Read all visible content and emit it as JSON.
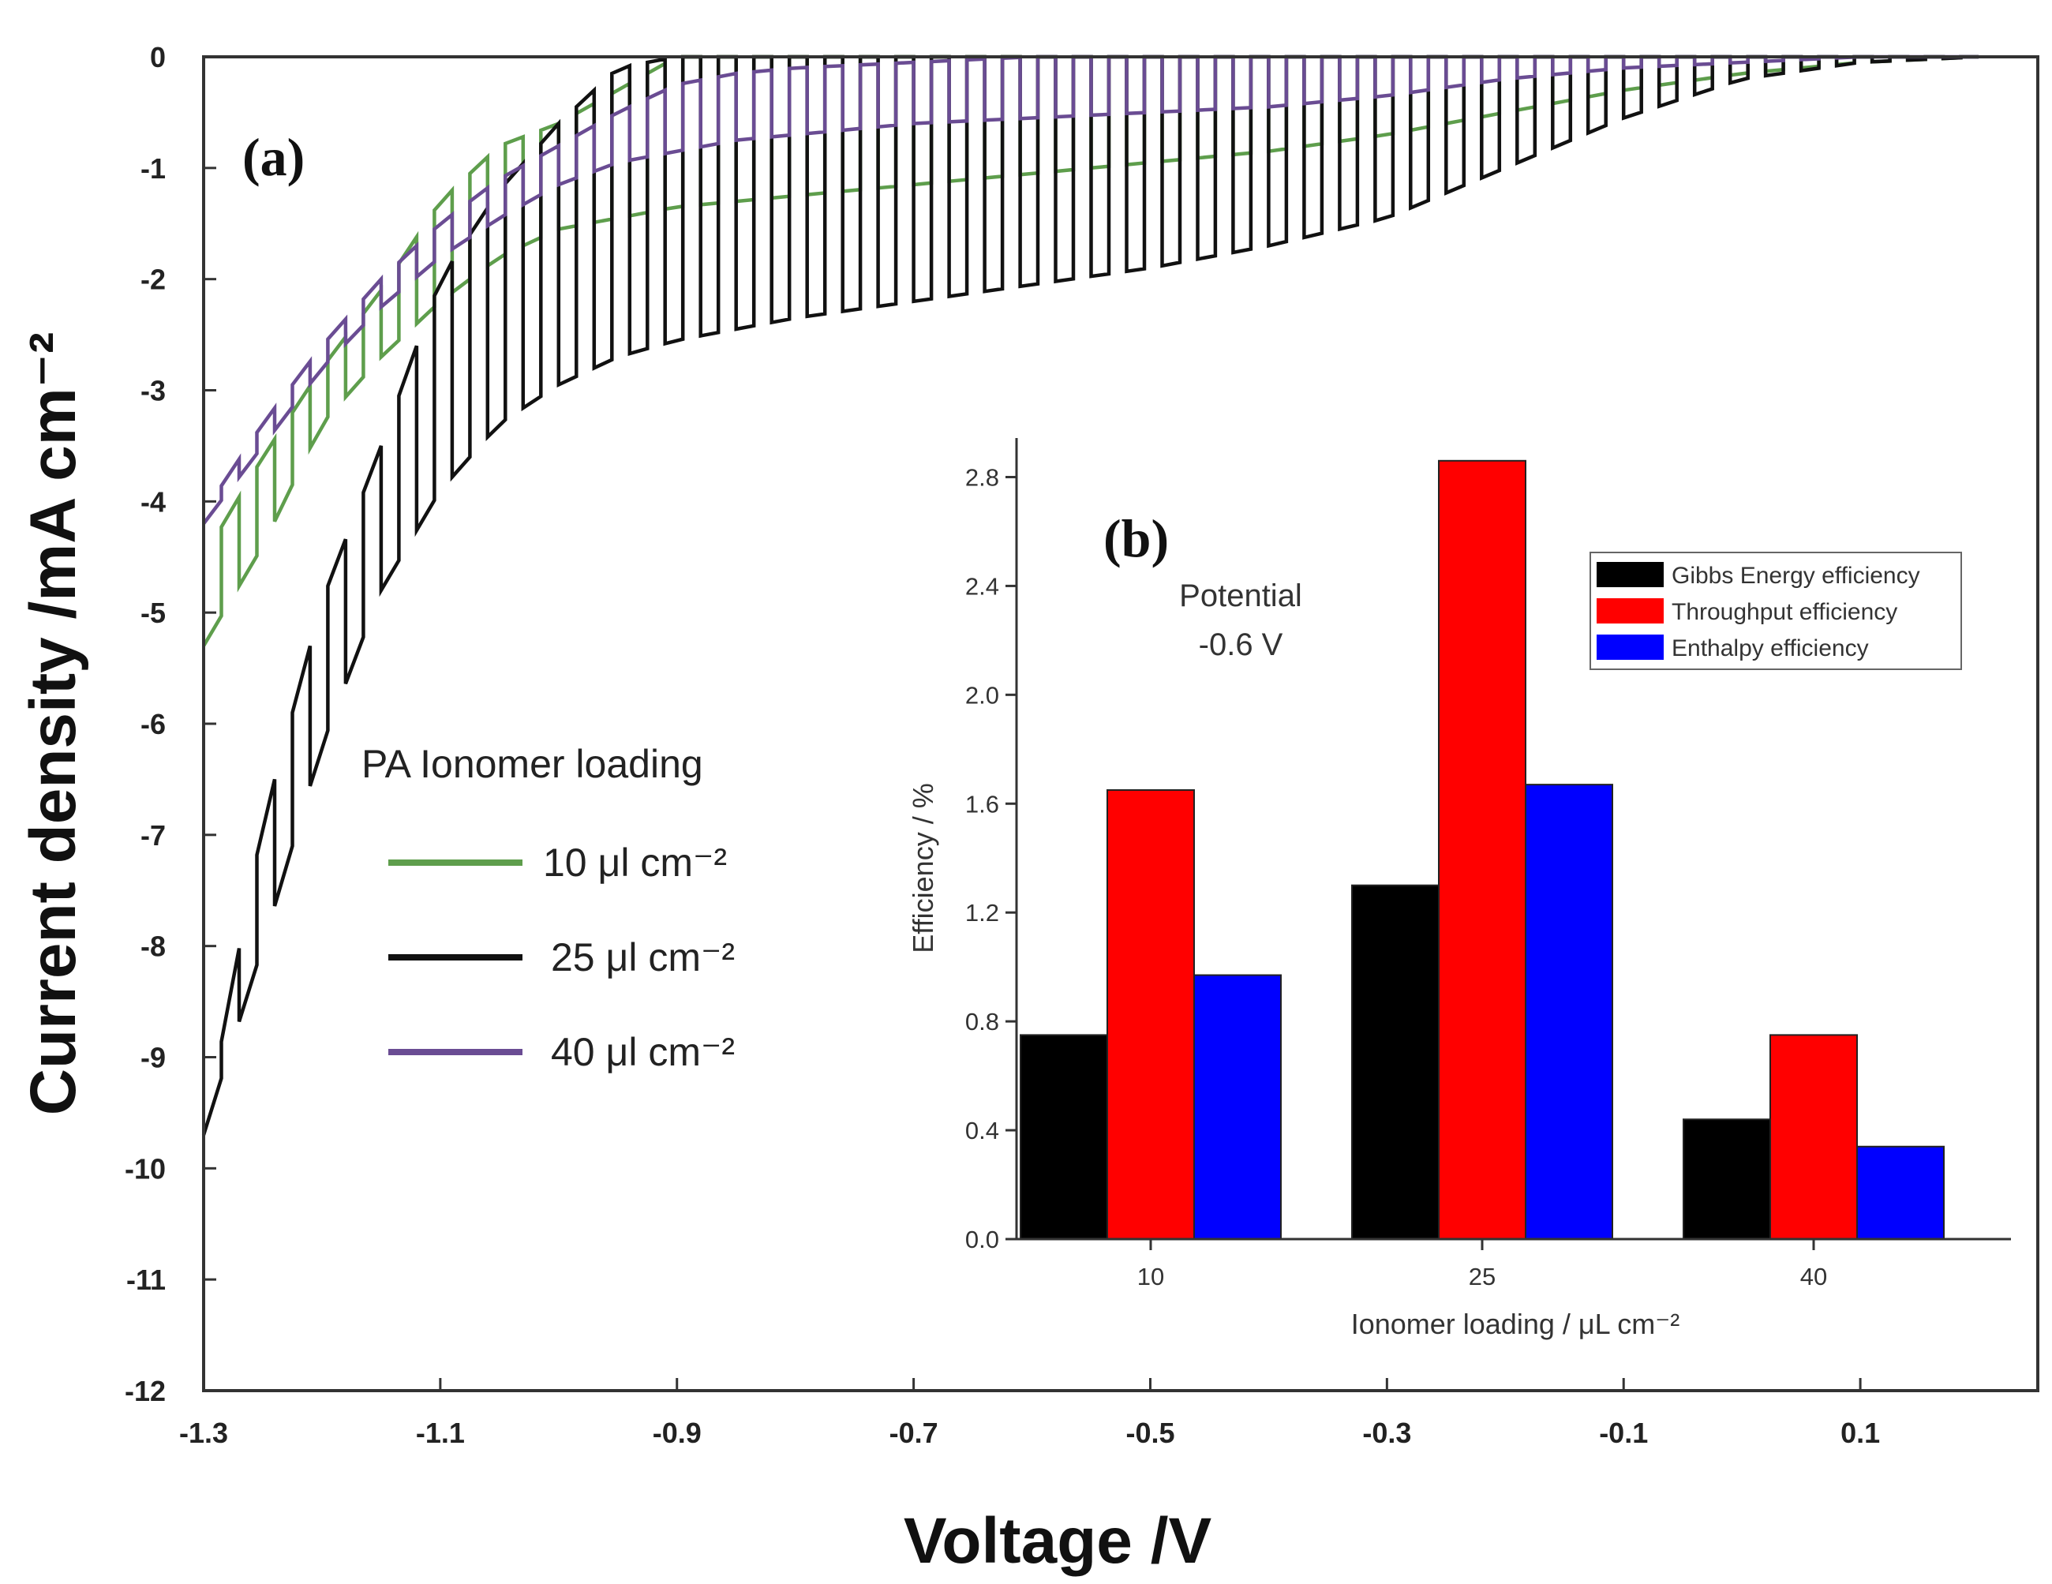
{
  "chart_data": [
    {
      "panel": "(a)",
      "type": "line",
      "title": "",
      "xlabel": "Voltage /V",
      "ylabel": "Current density /mA cm⁻²",
      "xlim": [
        -1.3,
        0.25
      ],
      "ylim": [
        -12,
        0
      ],
      "x_ticks": [
        -1.3,
        -1.1,
        -0.9,
        -0.7,
        -0.5,
        -0.3,
        -0.1,
        0.1
      ],
      "x_tick_labels": [
        "-1.3",
        "-1.1",
        "-0.9",
        "-0.7",
        "-0.5",
        "-0.3",
        "-0.1",
        "0.1"
      ],
      "y_ticks": [
        0,
        -1,
        -2,
        -3,
        -4,
        -5,
        -6,
        -7,
        -8,
        -9,
        -10,
        -11,
        -12
      ],
      "y_tick_labels": [
        "0",
        "-1",
        "-2",
        "-3",
        "-4",
        "-5",
        "-6",
        "-7",
        "-8",
        "-9",
        "-10",
        "-11",
        "-12"
      ],
      "legend_title": "PA Ionomer loading",
      "legend_position": "middle-left",
      "series": [
        {
          "name": "10 μl cm⁻²",
          "color": "#5e9e4c",
          "description": "chopped-light LSV: dark (upper) and illuminated (lower) current envelopes",
          "x": [
            -1.3,
            -1.25,
            -1.2,
            -1.15,
            -1.1,
            -1.05,
            -1.0,
            -0.95,
            -0.9,
            -0.85,
            -0.8,
            -0.7,
            -0.6,
            -0.5,
            -0.4,
            -0.3,
            -0.2,
            -0.1,
            0.0,
            0.1,
            0.2
          ],
          "envelope_upper": [
            -4.5,
            -3.6,
            -2.8,
            -2.1,
            -1.3,
            -0.8,
            -0.6,
            -0.3,
            0.0,
            0.0,
            0.0,
            0.0,
            0.0,
            0.0,
            0.0,
            0.0,
            0.0,
            0.0,
            0.0,
            0.0,
            0.0
          ],
          "envelope_lower": [
            -5.3,
            -4.4,
            -3.3,
            -2.7,
            -2.2,
            -1.8,
            -1.55,
            -1.45,
            -1.35,
            -1.3,
            -1.25,
            -1.15,
            -1.05,
            -0.95,
            -0.85,
            -0.7,
            -0.5,
            -0.3,
            -0.15,
            -0.05,
            0.0
          ]
        },
        {
          "name": "25 μl cm⁻²",
          "color": "#111111",
          "description": "chopped-light LSV: dark (upper) and illuminated (lower) current envelopes",
          "x": [
            -1.3,
            -1.25,
            -1.2,
            -1.15,
            -1.1,
            -1.05,
            -1.0,
            -0.95,
            -0.9,
            -0.85,
            -0.8,
            -0.7,
            -0.6,
            -0.5,
            -0.4,
            -0.3,
            -0.2,
            -0.1,
            0.0,
            0.1,
            0.2
          ],
          "envelope_upper": [
            -9.7,
            -6.9,
            -4.9,
            -3.5,
            -2.0,
            -1.2,
            -0.6,
            -0.1,
            0.0,
            0.0,
            0.0,
            0.0,
            0.0,
            0.0,
            0.0,
            0.0,
            0.0,
            0.0,
            0.0,
            0.0,
            0.0
          ],
          "envelope_lower": [
            -9.7,
            -8.0,
            -6.2,
            -4.8,
            -3.9,
            -3.3,
            -2.95,
            -2.7,
            -2.55,
            -2.45,
            -2.35,
            -2.2,
            -2.05,
            -1.9,
            -1.7,
            -1.45,
            -1.0,
            -0.55,
            -0.2,
            -0.05,
            0.0
          ]
        },
        {
          "name": "40 μl cm⁻²",
          "color": "#6a4c93",
          "description": "chopped-light LSV: dark (upper) and illuminated (lower) current envelopes",
          "x": [
            -1.3,
            -1.25,
            -1.2,
            -1.15,
            -1.1,
            -1.05,
            -1.0,
            -0.95,
            -0.9,
            -0.85,
            -0.8,
            -0.7,
            -0.6,
            -0.5,
            -0.4,
            -0.3,
            -0.2,
            -0.1,
            0.0,
            0.1,
            0.2
          ],
          "envelope_upper": [
            -4.1,
            -3.3,
            -2.6,
            -2.0,
            -1.5,
            -1.1,
            -0.8,
            -0.5,
            -0.25,
            -0.15,
            -0.1,
            -0.05,
            0.0,
            0.0,
            0.0,
            0.0,
            0.0,
            0.0,
            0.0,
            0.0,
            0.0
          ],
          "envelope_lower": [
            -4.2,
            -3.5,
            -2.8,
            -2.25,
            -1.8,
            -1.45,
            -1.15,
            -0.95,
            -0.85,
            -0.75,
            -0.7,
            -0.6,
            -0.55,
            -0.5,
            -0.45,
            -0.35,
            -0.2,
            -0.1,
            -0.05,
            0.0,
            0.0
          ]
        }
      ]
    },
    {
      "panel": "(b)",
      "type": "bar",
      "title": "",
      "xlabel": "Ionomer loading / μL cm⁻²",
      "ylabel": "Efficiency / %",
      "ylim": [
        0,
        2.9
      ],
      "y_ticks": [
        0.0,
        0.4,
        0.8,
        1.2,
        1.6,
        2.0,
        2.4,
        2.8
      ],
      "y_tick_labels": [
        "0.0",
        "0.4",
        "0.8",
        "1.2",
        "1.6",
        "2.0",
        "2.4",
        "2.8"
      ],
      "categories": [
        "10",
        "25",
        "40"
      ],
      "annotation": [
        "Potential",
        "-0.6 V"
      ],
      "legend_position": "top-right",
      "series": [
        {
          "name": "Gibbs Energy efficiency",
          "color": "#000000",
          "values": [
            0.75,
            1.3,
            0.44
          ]
        },
        {
          "name": "Throughput efficiency",
          "color": "#ff0000",
          "values": [
            1.65,
            2.86,
            0.75
          ]
        },
        {
          "name": "Enthalpy efficiency",
          "color": "#0000ff",
          "values": [
            0.97,
            1.67,
            0.34
          ]
        }
      ]
    }
  ]
}
